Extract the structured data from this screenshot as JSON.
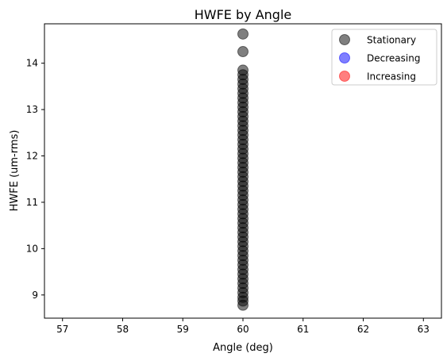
{
  "chart_data": {
    "type": "scatter",
    "title": "HWFE by Angle",
    "xlabel": "Angle (deg)",
    "ylabel": "HWFE (um-rms)",
    "xlim": [
      56.7,
      63.3
    ],
    "ylim": [
      8.5,
      14.85
    ],
    "xticks": [
      57,
      58,
      59,
      60,
      61,
      62,
      63
    ],
    "yticks": [
      9,
      10,
      11,
      12,
      13,
      14
    ],
    "grid": false,
    "legend_position": "top-right",
    "legend": [
      {
        "label": "Stationary",
        "color": "#000000"
      },
      {
        "label": "Decreasing",
        "color": "#0000ff"
      },
      {
        "label": "Increasing",
        "color": "#ff0000"
      }
    ],
    "series": [
      {
        "name": "Stationary",
        "color": "#000000",
        "points": [
          [
            60,
            14.63
          ],
          [
            60,
            14.25
          ],
          [
            60,
            13.85
          ],
          [
            60,
            13.75
          ],
          [
            60,
            13.65
          ],
          [
            60,
            13.55
          ],
          [
            60,
            13.45
          ],
          [
            60,
            13.35
          ],
          [
            60,
            13.25
          ],
          [
            60,
            13.15
          ],
          [
            60,
            13.05
          ],
          [
            60,
            12.95
          ],
          [
            60,
            12.85
          ],
          [
            60,
            12.75
          ],
          [
            60,
            12.65
          ],
          [
            60,
            12.55
          ],
          [
            60,
            12.45
          ],
          [
            60,
            12.35
          ],
          [
            60,
            12.25
          ],
          [
            60,
            12.15
          ],
          [
            60,
            12.05
          ],
          [
            60,
            11.95
          ],
          [
            60,
            11.85
          ],
          [
            60,
            11.75
          ],
          [
            60,
            11.65
          ],
          [
            60,
            11.55
          ],
          [
            60,
            11.45
          ],
          [
            60,
            11.35
          ],
          [
            60,
            11.25
          ],
          [
            60,
            11.15
          ],
          [
            60,
            11.05
          ],
          [
            60,
            10.95
          ],
          [
            60,
            10.85
          ],
          [
            60,
            10.75
          ],
          [
            60,
            10.65
          ],
          [
            60,
            10.55
          ],
          [
            60,
            10.45
          ],
          [
            60,
            10.35
          ],
          [
            60,
            10.25
          ],
          [
            60,
            10.15
          ],
          [
            60,
            10.05
          ],
          [
            60,
            9.95
          ],
          [
            60,
            9.85
          ],
          [
            60,
            9.75
          ],
          [
            60,
            9.65
          ],
          [
            60,
            9.55
          ],
          [
            60,
            9.45
          ],
          [
            60,
            9.35
          ],
          [
            60,
            9.25
          ],
          [
            60,
            9.15
          ],
          [
            60,
            9.05
          ],
          [
            60,
            8.95
          ],
          [
            60,
            8.87
          ],
          [
            60,
            8.78
          ]
        ]
      },
      {
        "name": "Decreasing",
        "color": "#0000ff",
        "points": []
      },
      {
        "name": "Increasing",
        "color": "#ff0000",
        "points": []
      }
    ]
  }
}
